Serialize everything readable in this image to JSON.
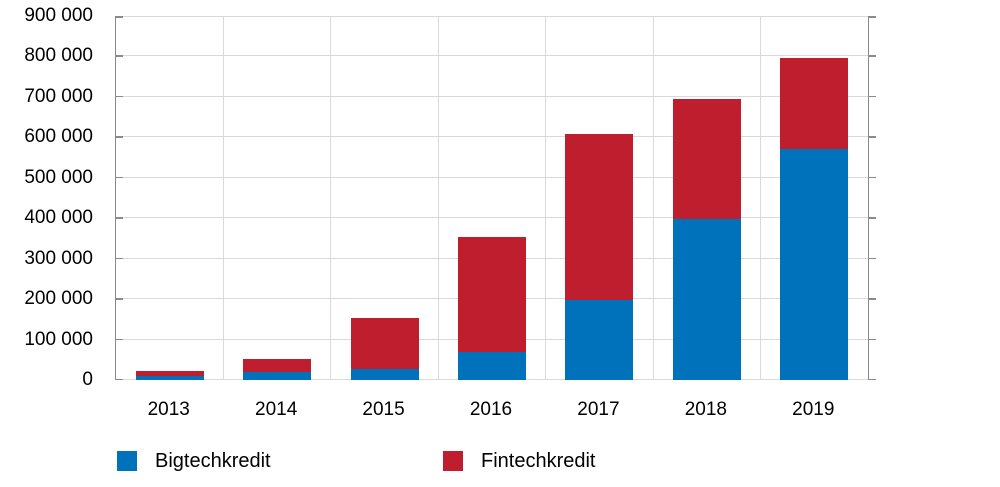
{
  "chart_data": {
    "type": "bar",
    "stacked": true,
    "title": "",
    "xlabel": "",
    "ylabel": "",
    "categories": [
      "2013",
      "2014",
      "2015",
      "2016",
      "2017",
      "2018",
      "2019"
    ],
    "series": [
      {
        "name": "Bigtechkredit",
        "color": "#0072BC",
        "values": [
          11000,
          19000,
          28000,
          70000,
          197000,
          397000,
          572000
        ]
      },
      {
        "name": "Fintechkredit",
        "color": "#BE1E2D",
        "values": [
          12000,
          32000,
          126000,
          283000,
          411000,
          297000,
          223000
        ]
      }
    ],
    "ylim": [
      0,
      900000
    ],
    "ytick_step": 100000,
    "ytick_labels": [
      "0",
      "100 000",
      "200 000",
      "300 000",
      "400 000",
      "500 000",
      "600 000",
      "700 000",
      "800 000",
      "900 000"
    ],
    "grid": true,
    "grid_color": "#d9d9d9",
    "axis_color": "#8a8a8a",
    "legend_position": "bottom"
  }
}
